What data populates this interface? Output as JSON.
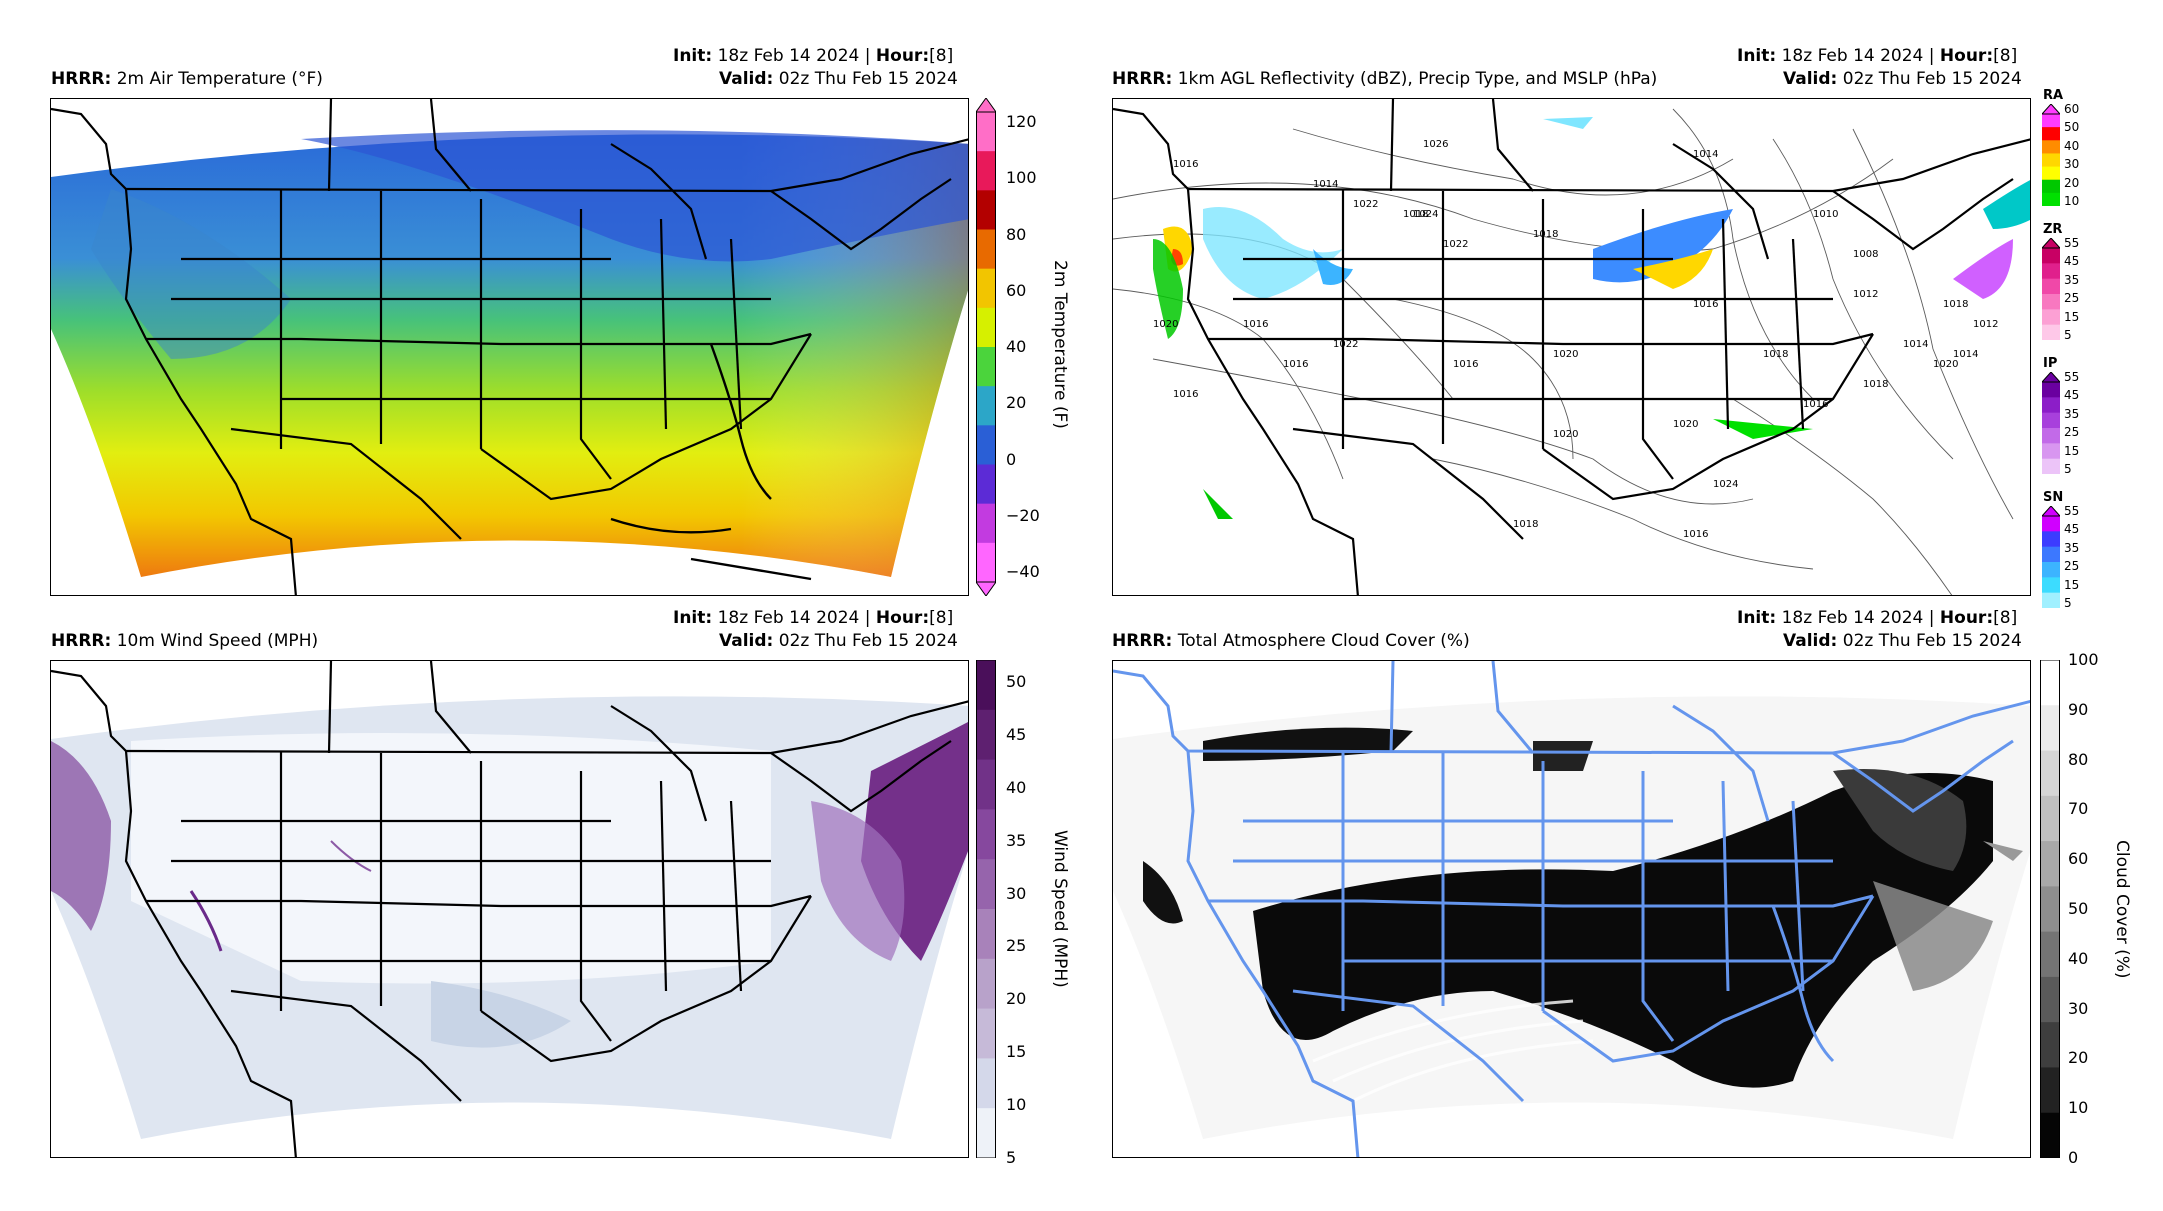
{
  "common": {
    "model": "HRRR",
    "init_label": "Init",
    "init_value": "18z Feb 14 2024",
    "hour_label": "Hour",
    "hour_value": "[8]",
    "valid_label": "Valid",
    "valid_value": "02z Thu Feb 15 2024",
    "sep": "|"
  },
  "panels": {
    "temp": {
      "title": "2m Air Temperature (°F)",
      "colorbar_label": "2m Temperature (F)",
      "ticks": [
        "120",
        "100",
        "80",
        "60",
        "40",
        "20",
        "0",
        "−20",
        "−40"
      ],
      "colors": [
        "#ff6ec7",
        "#e8195a",
        "#b30000",
        "#e86a00",
        "#f2c500",
        "#d6f000",
        "#4bd43c",
        "#2ca6c8",
        "#2a5fd6",
        "#5c2bd6",
        "#c23be0",
        "#ff66ff"
      ]
    },
    "refl": {
      "title": "1km AGL Reflectivity (dBZ), Precip Type, and MSLP (hPa)",
      "legends": [
        {
          "name": "RA",
          "ticks": [
            "60",
            "50",
            "40",
            "30",
            "20",
            "10"
          ],
          "colors": [
            "#ff3cff",
            "#ff0000",
            "#ff8c00",
            "#ffd700",
            "#ffff00",
            "#00c800",
            "#00e000"
          ]
        },
        {
          "name": "ZR",
          "ticks": [
            "55",
            "45",
            "35",
            "25",
            "15",
            "5"
          ],
          "colors": [
            "#c80064",
            "#e0208c",
            "#f048a8",
            "#f878c0",
            "#fca0d4",
            "#fec8e8"
          ]
        },
        {
          "name": "IP",
          "ticks": [
            "55",
            "45",
            "35",
            "25",
            "15",
            "5"
          ],
          "colors": [
            "#6a00a0",
            "#8c1ec8",
            "#a840dc",
            "#c26ae8",
            "#d896f0",
            "#ecc4f8"
          ]
        },
        {
          "name": "SN",
          "ticks": [
            "55",
            "45",
            "35",
            "25",
            "15",
            "5"
          ],
          "colors": [
            "#d000ff",
            "#3c3cff",
            "#3c78ff",
            "#3cb4ff",
            "#3cdcff",
            "#a0f0ff"
          ]
        }
      ],
      "isobars": [
        "1026",
        "1014",
        "1016",
        "1018",
        "1022",
        "1020",
        "1024",
        "1018",
        "1016",
        "1022",
        "1016",
        "1016",
        "1016",
        "1020",
        "1014",
        "1022",
        "1018",
        "1020",
        "1012",
        "1016",
        "1018",
        "1014",
        "1020",
        "1008",
        "1016",
        "1024",
        "1018",
        "1020",
        "1018",
        "1016",
        "1012",
        "1014",
        "1010"
      ]
    },
    "wind": {
      "title": "10m Wind Speed (MPH)",
      "colorbar_label": "Wind Speed (MPH)",
      "ticks": [
        "50",
        "45",
        "40",
        "35",
        "30",
        "25",
        "20",
        "15",
        "10",
        "5"
      ],
      "colors": [
        "#4a0f5a",
        "#5e2070",
        "#713288",
        "#86489e",
        "#9664ac",
        "#a882ba",
        "#b8a2ca",
        "#c6bad8",
        "#d4d8ea",
        "#eef2f8"
      ]
    },
    "cloud": {
      "title": "Total Atmosphere Cloud Cover (%)",
      "colorbar_label": "Cloud Cover (%)",
      "ticks": [
        "100",
        "90",
        "80",
        "70",
        "60",
        "50",
        "40",
        "30",
        "20",
        "10",
        "0"
      ],
      "colors": [
        "#ffffff",
        "#ebebeb",
        "#d6d6d6",
        "#c0c0c0",
        "#a8a8a8",
        "#8e8e8e",
        "#747474",
        "#5a5a5a",
        "#3e3e3e",
        "#222222",
        "#050505"
      ]
    }
  }
}
